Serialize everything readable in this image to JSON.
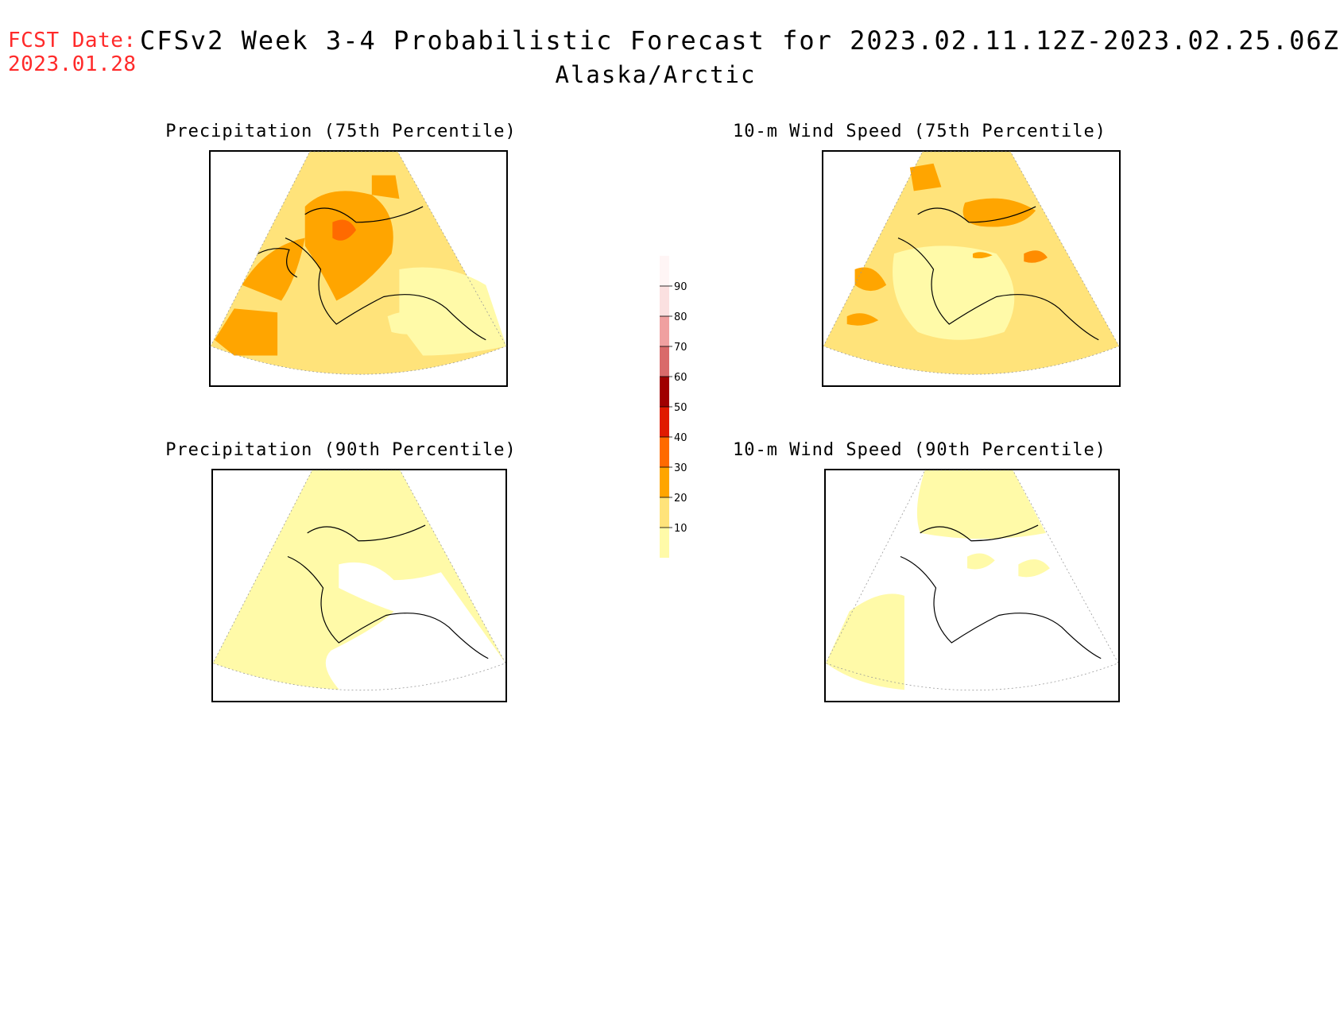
{
  "header": {
    "fcst_label": "FCST Date:",
    "fcst_date": "2023.01.28",
    "title": "CFSv2 Week 3-4 Probabilistic Forecast for 2023.02.11.12Z-2023.02.25.06Z",
    "subtitle": "Alaska/Arctic"
  },
  "panels": [
    {
      "title": "Precipitation (75th Percentile)"
    },
    {
      "title": "10-m Wind Speed (75th Percentile)"
    },
    {
      "title": "Precipitation (90th Percentile)"
    },
    {
      "title": "10-m Wind Speed (90th Percentile)"
    }
  ],
  "colorbar": {
    "levels": [
      "10",
      "20",
      "30",
      "40",
      "50",
      "60",
      "70",
      "80",
      "90"
    ],
    "colors": [
      "#fffaa8",
      "#ffe37a",
      "#ffa500",
      "#ff6a00",
      "#e01a00",
      "#a00000",
      "#d96a6a",
      "#f0a0a0",
      "#fbe0e0",
      "#fff5f5"
    ]
  }
}
